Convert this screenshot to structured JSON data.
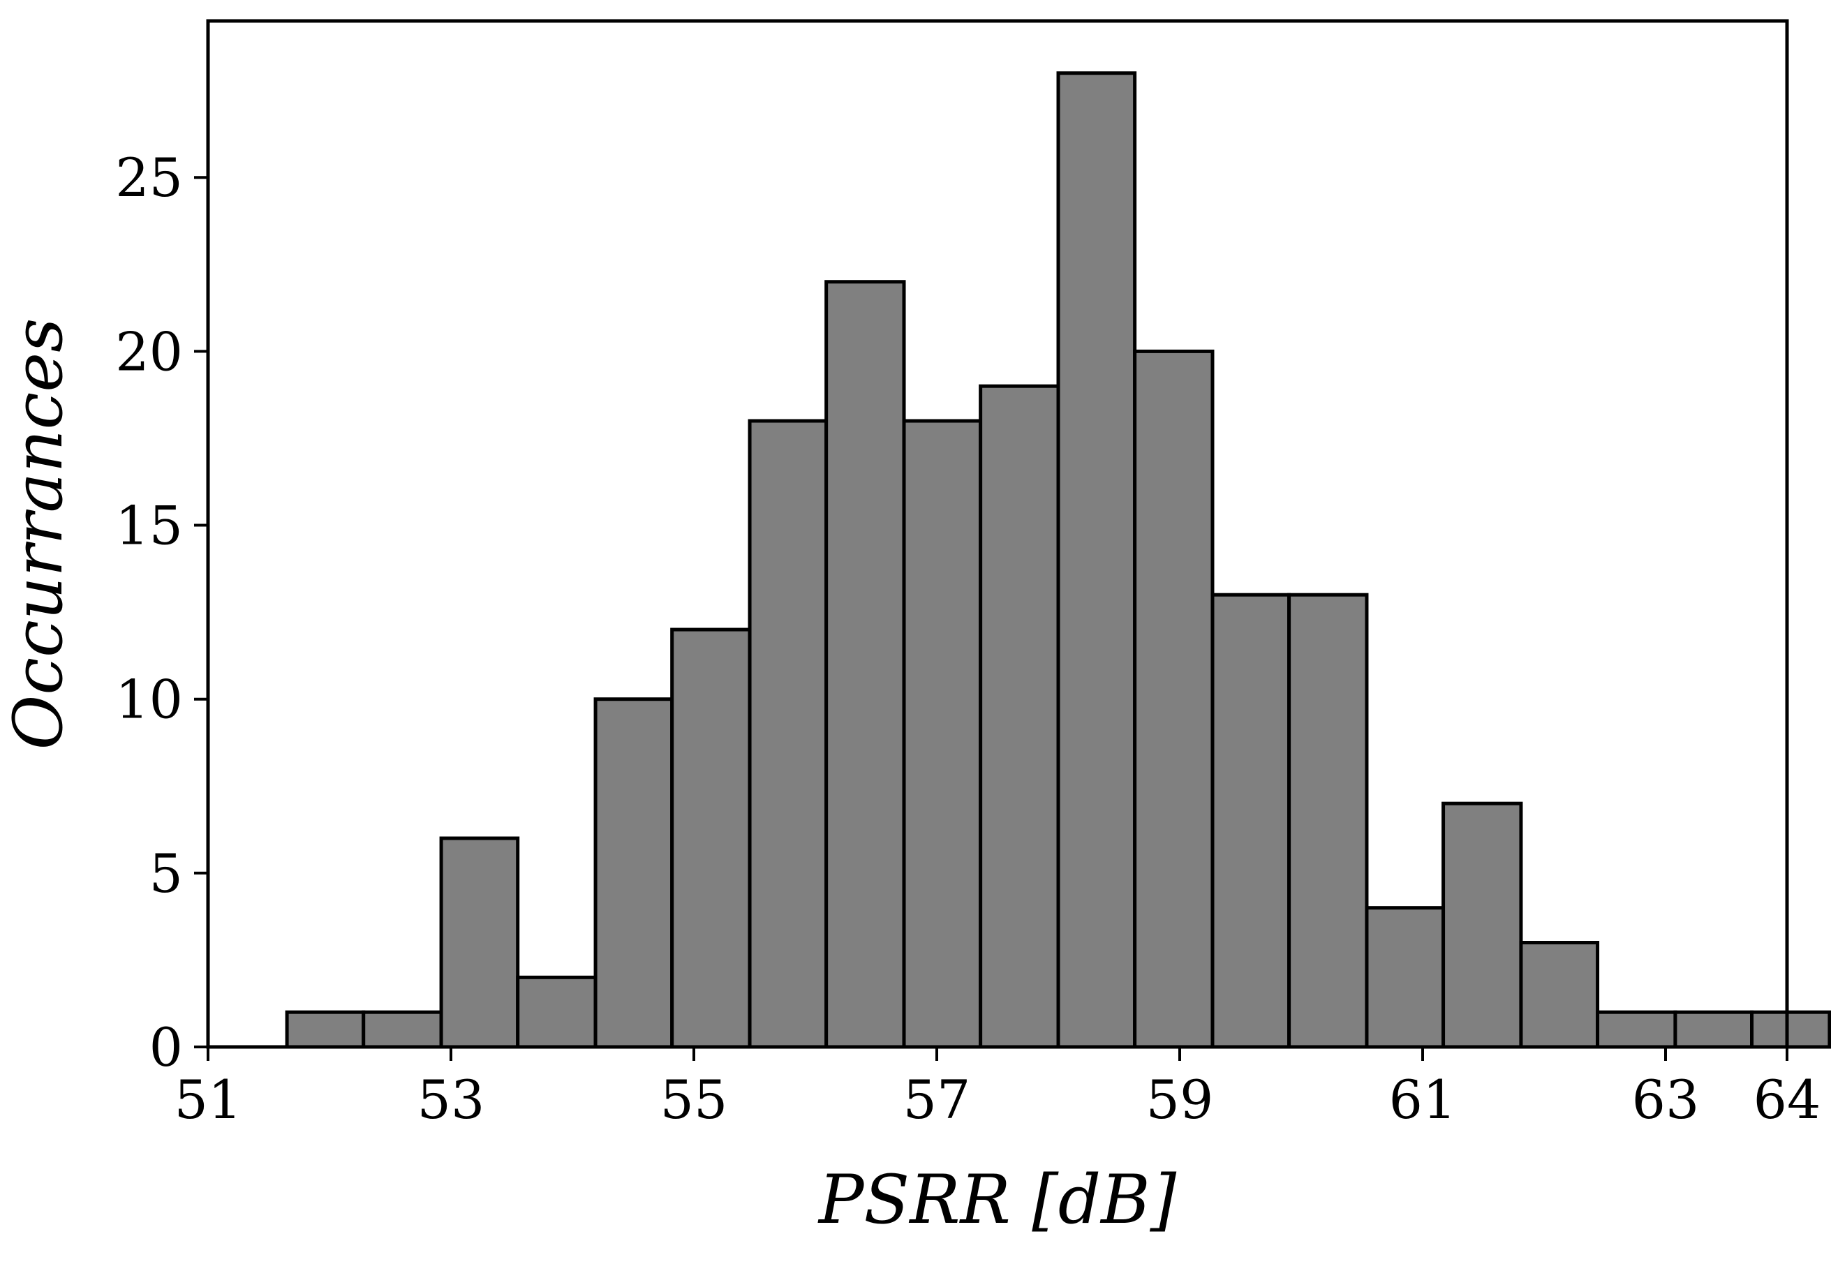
{
  "chart_data": {
    "type": "bar",
    "subtype": "histogram",
    "title": "",
    "xlabel": "PSRR [dB]",
    "ylabel": "Occurrances",
    "xlim": [
      51,
      64
    ],
    "ylim": [
      0,
      29.5
    ],
    "xticks": [
      51,
      53,
      55,
      57,
      59,
      61,
      63,
      64
    ],
    "yticks": [
      0,
      5,
      10,
      15,
      20,
      25
    ],
    "bin_edges": [
      51.65,
      52.28,
      52.92,
      53.55,
      54.19,
      54.82,
      55.46,
      56.09,
      56.73,
      57.36,
      58.0,
      58.63,
      59.27,
      59.9,
      60.54,
      61.17,
      61.81,
      62.44,
      63.08,
      63.71,
      64.35
    ],
    "counts": [
      1,
      1,
      6,
      2,
      10,
      12,
      18,
      22,
      18,
      19,
      28,
      20,
      13,
      13,
      4,
      7,
      3,
      1,
      1,
      1
    ],
    "bar_color": "#808080",
    "edge_color": "#000000",
    "grid": false,
    "legend": "none"
  }
}
